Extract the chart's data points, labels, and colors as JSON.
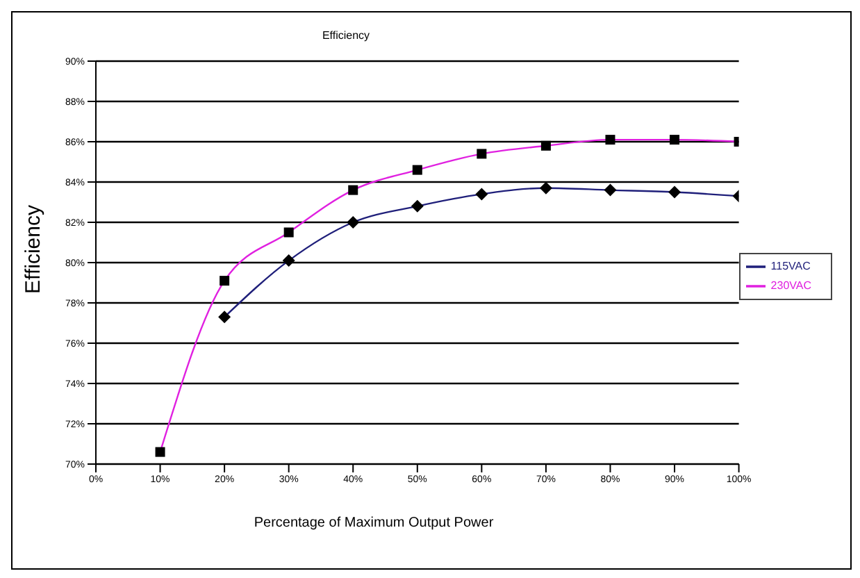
{
  "chart_data": {
    "type": "line",
    "title": "Efficiency",
    "xlabel": "Percentage of Maximum Output Power",
    "ylabel": "Efficiency",
    "x": [
      10,
      20,
      30,
      40,
      50,
      60,
      70,
      80,
      90,
      100
    ],
    "series": [
      {
        "name": "115VAC",
        "color": "#1f1f7a",
        "marker": "diamond",
        "values": [
          null,
          77.3,
          80.1,
          82.0,
          82.8,
          83.4,
          83.7,
          83.6,
          83.5,
          83.3
        ]
      },
      {
        "name": "230VAC",
        "color": "#e020e0",
        "marker": "square",
        "values": [
          70.6,
          79.1,
          81.5,
          83.6,
          84.6,
          85.4,
          85.8,
          86.1,
          86.1,
          86.0
        ]
      }
    ],
    "xlim": [
      0,
      100
    ],
    "xticks": [
      {
        "value": 0,
        "label": "0%"
      },
      {
        "value": 10,
        "label": "10%"
      },
      {
        "value": 20,
        "label": "20%"
      },
      {
        "value": 30,
        "label": "30%"
      },
      {
        "value": 40,
        "label": "40%"
      },
      {
        "value": 50,
        "label": "50%"
      },
      {
        "value": 60,
        "label": "60%"
      },
      {
        "value": 70,
        "label": "70%"
      },
      {
        "value": 80,
        "label": "80%"
      },
      {
        "value": 90,
        "label": "90%"
      },
      {
        "value": 100,
        "label": "100%"
      }
    ],
    "ylim": [
      70,
      90
    ],
    "yticks": [
      {
        "value": 70,
        "label": "70%"
      },
      {
        "value": 72,
        "label": "72%"
      },
      {
        "value": 74,
        "label": "74%"
      },
      {
        "value": 76,
        "label": "76%"
      },
      {
        "value": 78,
        "label": "78%"
      },
      {
        "value": 80,
        "label": "80%"
      },
      {
        "value": 82,
        "label": "82%"
      },
      {
        "value": 84,
        "label": "84%"
      },
      {
        "value": 86,
        "label": "86%"
      },
      {
        "value": 88,
        "label": "88%"
      },
      {
        "value": 90,
        "label": "90%"
      }
    ],
    "grid": "y",
    "legend": "right"
  }
}
